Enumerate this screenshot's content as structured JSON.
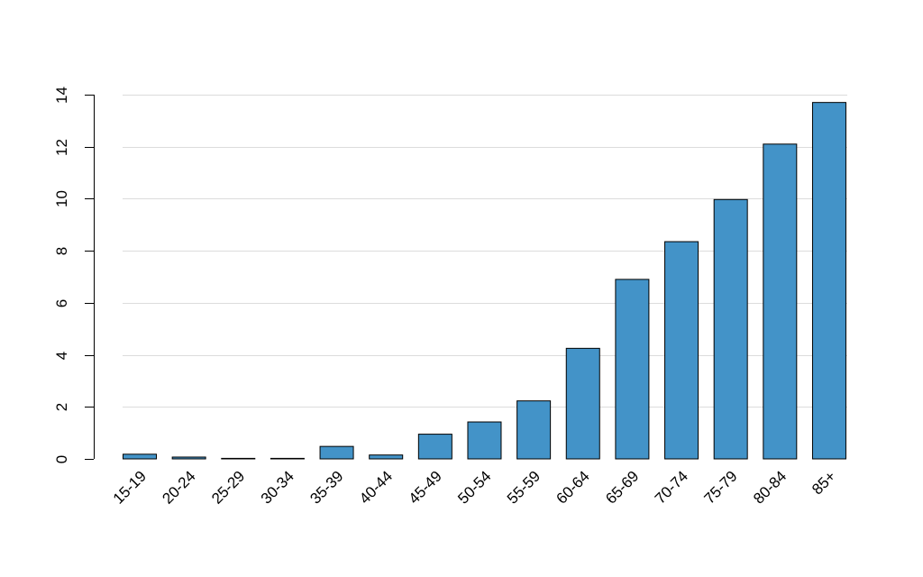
{
  "chart_data": {
    "type": "bar",
    "title": "",
    "xlabel": "",
    "ylabel": "",
    "categories": [
      "15-19",
      "20-24",
      "25-29",
      "30-34",
      "35-39",
      "40-44",
      "45-49",
      "50-54",
      "55-59",
      "60-64",
      "65-69",
      "70-74",
      "75-79",
      "80-84",
      "85+"
    ],
    "values": [
      0.18,
      0.07,
      0.02,
      0.02,
      0.48,
      0.15,
      0.95,
      1.42,
      2.23,
      4.25,
      6.9,
      8.35,
      9.97,
      12.1,
      13.7
    ],
    "ylim": [
      0,
      14
    ],
    "yticks": [
      0,
      2,
      4,
      6,
      8,
      10,
      12,
      14
    ],
    "grid": true,
    "bar_color": "#4393c8",
    "bar_edge_color": "#000000",
    "grid_color": "#dcdcdc"
  }
}
